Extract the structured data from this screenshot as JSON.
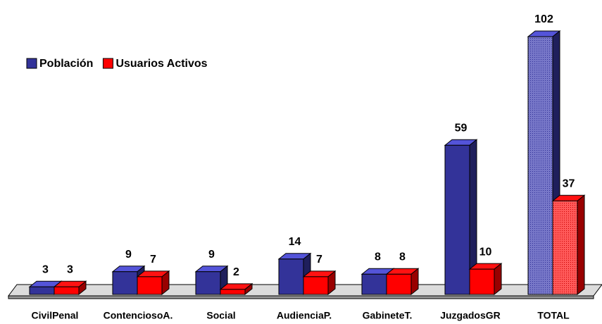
{
  "chart_data": {
    "type": "bar3d",
    "categories": [
      "CivilPenal",
      "ContenciosoA.",
      "Social",
      "AudienciaP.",
      "GabineteT.",
      "JuzgadosGR",
      "TOTAL"
    ],
    "series": [
      {
        "name": "Población",
        "color": "#333399",
        "values": [
          3,
          9,
          9,
          14,
          8,
          59,
          102
        ]
      },
      {
        "name": "Usuarios Activos",
        "color": "#ff0000",
        "values": [
          3,
          7,
          2,
          7,
          8,
          10,
          37
        ]
      }
    ],
    "legend": "top-left"
  }
}
